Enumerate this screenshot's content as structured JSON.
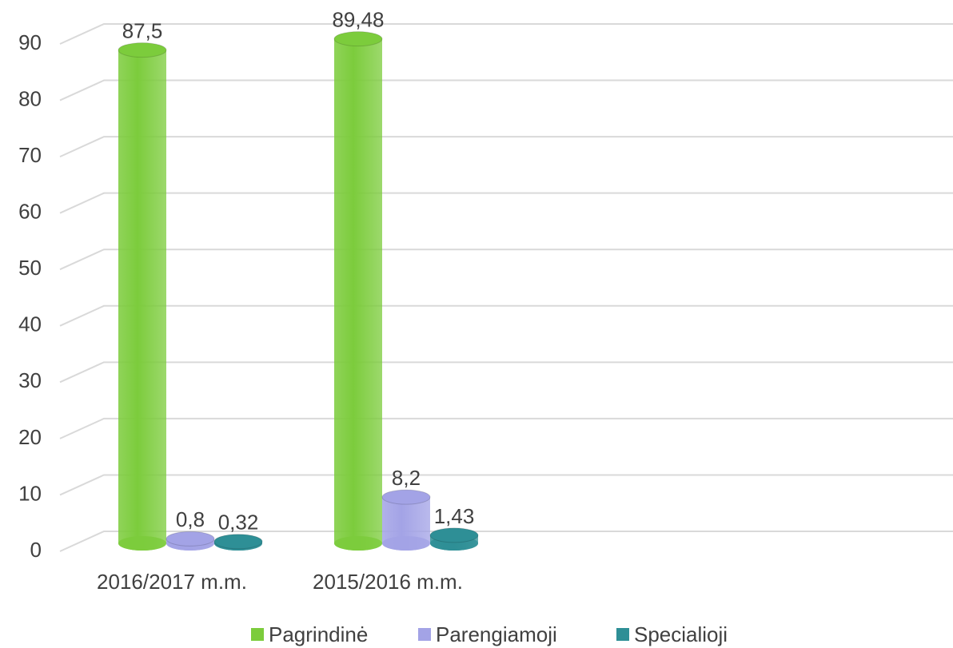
{
  "chart_data": {
    "type": "bar3d",
    "categories": [
      "2016/2017 m.m.",
      "2015/2016 m.m."
    ],
    "series": [
      {
        "name": "Pagrindinė",
        "color": "#7ccc3c",
        "values": [
          87.5,
          89.48
        ],
        "value_labels": [
          "87,5",
          "89,48"
        ]
      },
      {
        "name": "Parengiamoji",
        "color": "#a3a3e6",
        "values": [
          0.8,
          8.2
        ],
        "value_labels": [
          "0,8",
          "8,2"
        ]
      },
      {
        "name": "Specialioji",
        "color": "#2e8f96",
        "values": [
          0.32,
          1.43
        ],
        "value_labels": [
          "0,32",
          "1,43"
        ]
      }
    ],
    "ylim": [
      0,
      90
    ],
    "yticks": [
      0,
      10,
      20,
      30,
      40,
      50,
      60,
      70,
      80,
      90
    ],
    "grid": true,
    "legend": "bottom"
  }
}
